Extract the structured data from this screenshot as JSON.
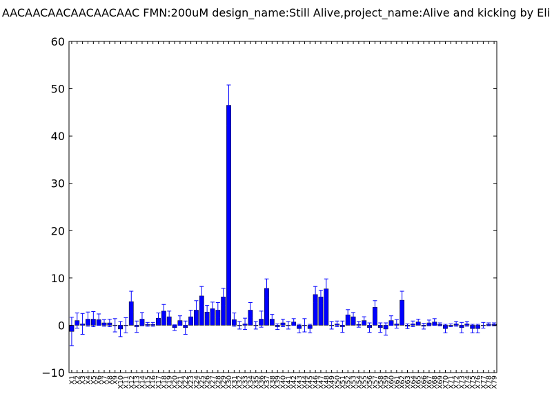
{
  "chart_data": {
    "type": "bar",
    "title": "AACAACAACAACAACAAC  FMN:200uM  design_name:Still Alive,project_name:Alive and kicking by Eli",
    "xlabel": "",
    "ylabel": "",
    "ylim": [
      -10,
      60
    ],
    "yticks": [
      "−10",
      "0",
      "10",
      "20",
      "30",
      "40",
      "50",
      "60"
    ],
    "grid": false,
    "legend": "none",
    "bar_color": "#0000ff",
    "error_color": "#0000ff",
    "categories": [
      "X1",
      "X2",
      "X3",
      "X4",
      "X5",
      "X6",
      "X7",
      "X8",
      "X9",
      "X10",
      "X11",
      "X12",
      "X13",
      "X14",
      "X15",
      "X16",
      "X17",
      "X18",
      "X19",
      "X20",
      "X21",
      "X22",
      "X23",
      "X24",
      "X25",
      "X26",
      "X27",
      "X28",
      "X29",
      "X30",
      "X31",
      "X32",
      "X33",
      "X34",
      "X35",
      "X36",
      "X37",
      "X38",
      "X39",
      "X40",
      "X41",
      "X42",
      "X43",
      "X44",
      "X45",
      "X46",
      "X47",
      "X48",
      "X49",
      "X50",
      "X51",
      "X52",
      "X53",
      "X54",
      "X55",
      "X56",
      "X57",
      "X58",
      "X59",
      "X60",
      "X61",
      "X62",
      "X63",
      "X64",
      "X65",
      "X66",
      "X67",
      "X68",
      "X69",
      "X70",
      "X71",
      "X72",
      "X73",
      "X74",
      "X75",
      "X76",
      "X77",
      "X78",
      "X79"
    ],
    "values": [
      -1.3,
      1.0,
      0.3,
      1.3,
      1.3,
      1.2,
      0.5,
      0.5,
      0.0,
      -0.8,
      0.0,
      5.0,
      -0.3,
      1.3,
      0.2,
      0.2,
      1.5,
      3.0,
      1.8,
      -0.5,
      1.0,
      -0.5,
      1.8,
      3.2,
      6.2,
      2.8,
      3.5,
      3.2,
      6.0,
      46.5,
      1.2,
      0.0,
      0.3,
      3.2,
      0.0,
      1.3,
      7.8,
      1.3,
      -0.3,
      0.5,
      0.0,
      0.7,
      -0.7,
      0.0,
      -0.7,
      6.5,
      6.0,
      7.7,
      0.0,
      0.3,
      -0.3,
      2.2,
      1.8,
      0.2,
      1.0,
      -0.5,
      3.8,
      -0.5,
      -0.8,
      1.0,
      0.3,
      5.3,
      -0.2,
      0.3,
      0.7,
      -0.2,
      0.5,
      0.7,
      0.2,
      -0.7,
      0.0,
      0.3,
      -0.5,
      0.3,
      -0.7,
      -0.7,
      0.0,
      0.2,
      0.2
    ],
    "errors": [
      3.0,
      1.6,
      2.2,
      1.5,
      1.6,
      1.2,
      0.7,
      0.8,
      1.4,
      1.6,
      1.6,
      2.2,
      1.2,
      1.4,
      0.4,
      0.4,
      1.1,
      1.4,
      1.2,
      0.6,
      1.0,
      1.4,
      1.4,
      2.0,
      2.0,
      1.4,
      1.4,
      1.6,
      1.8,
      4.3,
      1.4,
      0.8,
      1.2,
      1.6,
      0.8,
      1.7,
      2.0,
      1.0,
      0.6,
      0.8,
      0.8,
      0.7,
      0.9,
      1.4,
      0.9,
      1.7,
      1.4,
      2.1,
      0.8,
      0.6,
      1.2,
      1.1,
      0.9,
      0.6,
      0.8,
      1.0,
      1.4,
      1.0,
      1.3,
      1.0,
      0.9,
      1.9,
      0.5,
      0.6,
      0.6,
      0.6,
      0.6,
      0.7,
      0.3,
      0.9,
      0.3,
      0.5,
      1.1,
      0.5,
      0.9,
      0.9,
      0.6,
      0.3,
      0.3
    ]
  }
}
